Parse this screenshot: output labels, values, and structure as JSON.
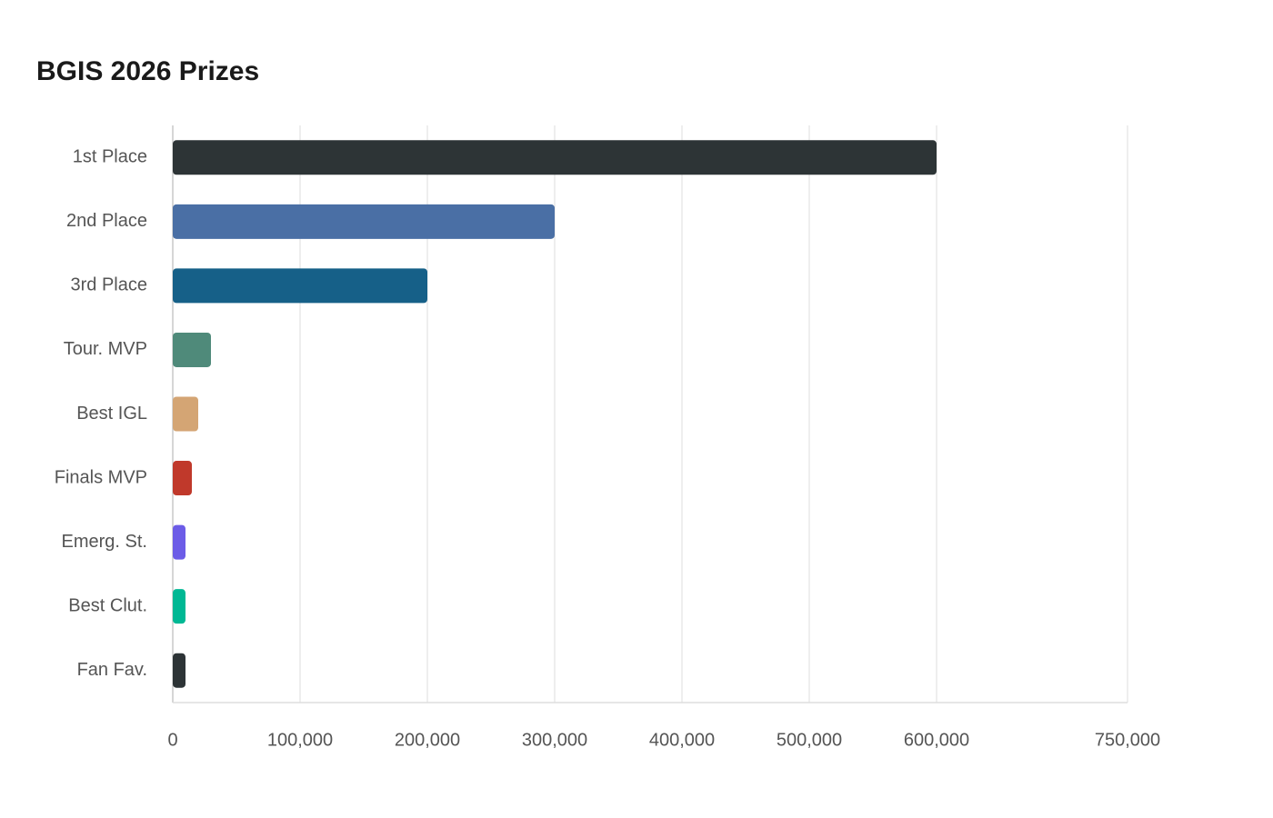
{
  "chart_data": {
    "type": "barh",
    "title": "BGIS 2026 Prizes",
    "categories": [
      "1st Place",
      "2nd Place",
      "3rd Place",
      "Tour. MVP",
      "Best IGL",
      "Finals MVP",
      "Emerg. St.",
      "Best Clut.",
      "Fan Fav."
    ],
    "values": [
      600000,
      300000,
      200000,
      30000,
      20000,
      15000,
      10000,
      10000,
      10000
    ],
    "colors": [
      "#2d3436",
      "#4a6fa5",
      "#166088",
      "#4f8a7a",
      "#d4a574",
      "#c0392b",
      "#6c5ce7",
      "#00b894",
      "#2d3436"
    ],
    "xlim": [
      0,
      750000
    ],
    "xticks": [
      0,
      {
        "value": 100000,
        "label": "100,000"
      },
      {
        "value": 200000,
        "label": "200,000"
      },
      {
        "value": 300000,
        "label": "300,000"
      },
      {
        "value": 400000,
        "label": "400,000"
      },
      {
        "value": 500000,
        "label": "500,000"
      },
      {
        "value": 600000,
        "label": "600,000"
      },
      {
        "value": 750000,
        "label": "750,000"
      }
    ],
    "grid": true
  }
}
